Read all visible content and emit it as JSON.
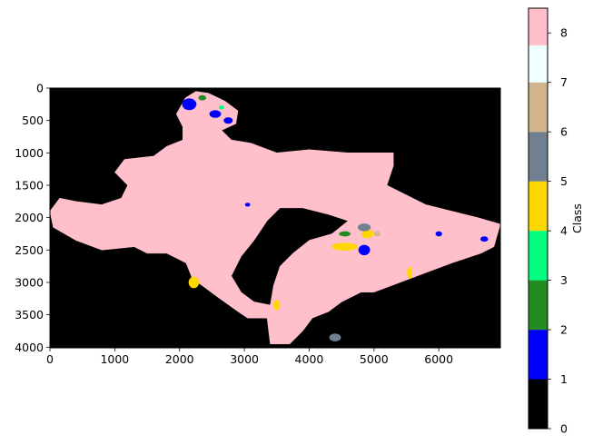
{
  "chart_data": {
    "type": "heatmap",
    "title": "",
    "xlabel": "",
    "ylabel": "",
    "xlim": [
      0,
      6950
    ],
    "ylim": [
      4010,
      0
    ],
    "x_ticks": [
      0,
      1000,
      2000,
      3000,
      4000,
      5000,
      6000
    ],
    "y_ticks": [
      0,
      500,
      1000,
      1500,
      2000,
      2500,
      3000,
      3500,
      4000
    ],
    "grid": false,
    "colorbar": {
      "label": "Class",
      "range": [
        0,
        8.5
      ],
      "ticks": [
        0,
        1,
        2,
        3,
        4,
        5,
        6,
        7,
        8
      ],
      "classes": [
        {
          "from": 0,
          "to": 1,
          "color": "#000000"
        },
        {
          "from": 1,
          "to": 2,
          "color": "#0000ff"
        },
        {
          "from": 2,
          "to": 3,
          "color": "#228b22"
        },
        {
          "from": 3,
          "to": 4,
          "color": "#00ff7f"
        },
        {
          "from": 4,
          "to": 5,
          "color": "#ffd700"
        },
        {
          "from": 5,
          "to": 6,
          "color": "#708090"
        },
        {
          "from": 6,
          "to": 7,
          "color": "#d2b48c"
        },
        {
          "from": 7,
          "to": 7.75,
          "color": "#f0ffff"
        },
        {
          "from": 7.75,
          "to": 8.5,
          "color": "#ffc0cb"
        }
      ]
    },
    "background_color": "#000000",
    "dominant_class_color": "#ffc0cb",
    "region_outline": [
      [
        2090,
        150
      ],
      [
        2250,
        50
      ],
      [
        2450,
        80
      ],
      [
        2700,
        200
      ],
      [
        2900,
        350
      ],
      [
        2870,
        550
      ],
      [
        2650,
        650
      ],
      [
        2800,
        800
      ],
      [
        3100,
        850
      ],
      [
        3500,
        1000
      ],
      [
        4000,
        950
      ],
      [
        4600,
        1000
      ],
      [
        5300,
        1000
      ],
      [
        5300,
        1200
      ],
      [
        5200,
        1500
      ],
      [
        5500,
        1650
      ],
      [
        5800,
        1800
      ],
      [
        6200,
        1900
      ],
      [
        6600,
        2000
      ],
      [
        6950,
        2100
      ],
      [
        6850,
        2450
      ],
      [
        6650,
        2550
      ],
      [
        6200,
        2700
      ],
      [
        5800,
        2850
      ],
      [
        5400,
        3000
      ],
      [
        5000,
        3150
      ],
      [
        4800,
        3150
      ],
      [
        4500,
        3300
      ],
      [
        4300,
        3450
      ],
      [
        4050,
        3550
      ],
      [
        3900,
        3750
      ],
      [
        3700,
        3950
      ],
      [
        3400,
        3950
      ],
      [
        3350,
        3550
      ],
      [
        3050,
        3550
      ],
      [
        2900,
        3450
      ],
      [
        2550,
        3200
      ],
      [
        2350,
        3050
      ],
      [
        2200,
        2950
      ],
      [
        2100,
        2700
      ],
      [
        1800,
        2550
      ],
      [
        1500,
        2550
      ],
      [
        1300,
        2450
      ],
      [
        800,
        2500
      ],
      [
        400,
        2350
      ],
      [
        50,
        2150
      ],
      [
        0,
        1900
      ],
      [
        150,
        1700
      ],
      [
        400,
        1750
      ],
      [
        800,
        1800
      ],
      [
        1100,
        1700
      ],
      [
        1200,
        1500
      ],
      [
        1000,
        1300
      ],
      [
        1150,
        1100
      ],
      [
        1600,
        1050
      ],
      [
        1800,
        900
      ],
      [
        2050,
        800
      ],
      [
        2050,
        600
      ],
      [
        1950,
        400
      ],
      [
        2090,
        150
      ]
    ],
    "inner_gap_outline": [
      [
        3550,
        1850
      ],
      [
        3900,
        1850
      ],
      [
        4300,
        1950
      ],
      [
        4600,
        2050
      ],
      [
        4350,
        2250
      ],
      [
        4000,
        2350
      ],
      [
        3750,
        2550
      ],
      [
        3550,
        2750
      ],
      [
        3450,
        3050
      ],
      [
        3400,
        3350
      ],
      [
        3150,
        3300
      ],
      [
        2950,
        3150
      ],
      [
        2800,
        2900
      ],
      [
        2950,
        2600
      ],
      [
        3150,
        2350
      ],
      [
        3350,
        2050
      ],
      [
        3550,
        1850
      ]
    ],
    "patches": [
      {
        "class": 1,
        "color": "#0000ff",
        "x": 2150,
        "y": 250,
        "rx": 110,
        "ry": 90
      },
      {
        "class": 1,
        "color": "#0000ff",
        "x": 2550,
        "y": 400,
        "rx": 90,
        "ry": 60
      },
      {
        "class": 1,
        "color": "#0000ff",
        "x": 2750,
        "y": 500,
        "rx": 70,
        "ry": 50
      },
      {
        "class": 1,
        "color": "#0000ff",
        "x": 4850,
        "y": 2500,
        "rx": 90,
        "ry": 80
      },
      {
        "class": 1,
        "color": "#0000ff",
        "x": 6700,
        "y": 2330,
        "rx": 60,
        "ry": 40
      },
      {
        "class": 1,
        "color": "#0000ff",
        "x": 6000,
        "y": 2250,
        "rx": 50,
        "ry": 40
      },
      {
        "class": 1,
        "color": "#0000ff",
        "x": 3050,
        "y": 1800,
        "rx": 40,
        "ry": 30
      },
      {
        "class": 2,
        "color": "#228b22",
        "x": 2350,
        "y": 150,
        "rx": 60,
        "ry": 40
      },
      {
        "class": 2,
        "color": "#228b22",
        "x": 4550,
        "y": 2250,
        "rx": 90,
        "ry": 40
      },
      {
        "class": 3,
        "color": "#00ff7f",
        "x": 2650,
        "y": 300,
        "rx": 40,
        "ry": 30
      },
      {
        "class": 4,
        "color": "#ffd700",
        "x": 4550,
        "y": 2450,
        "rx": 200,
        "ry": 60
      },
      {
        "class": 4,
        "color": "#ffd700",
        "x": 4900,
        "y": 2250,
        "rx": 90,
        "ry": 70
      },
      {
        "class": 4,
        "color": "#ffd700",
        "x": 2220,
        "y": 3000,
        "rx": 80,
        "ry": 90
      },
      {
        "class": 4,
        "color": "#ffd700",
        "x": 3500,
        "y": 3350,
        "rx": 50,
        "ry": 80
      },
      {
        "class": 4,
        "color": "#ffd700",
        "x": 5550,
        "y": 2850,
        "rx": 40,
        "ry": 90
      },
      {
        "class": 5,
        "color": "#708090",
        "x": 4850,
        "y": 2150,
        "rx": 100,
        "ry": 60
      },
      {
        "class": 5,
        "color": "#708090",
        "x": 4400,
        "y": 3850,
        "rx": 90,
        "ry": 60
      },
      {
        "class": 6,
        "color": "#d2b48c",
        "x": 5050,
        "y": 2250,
        "rx": 50,
        "ry": 40
      }
    ]
  }
}
